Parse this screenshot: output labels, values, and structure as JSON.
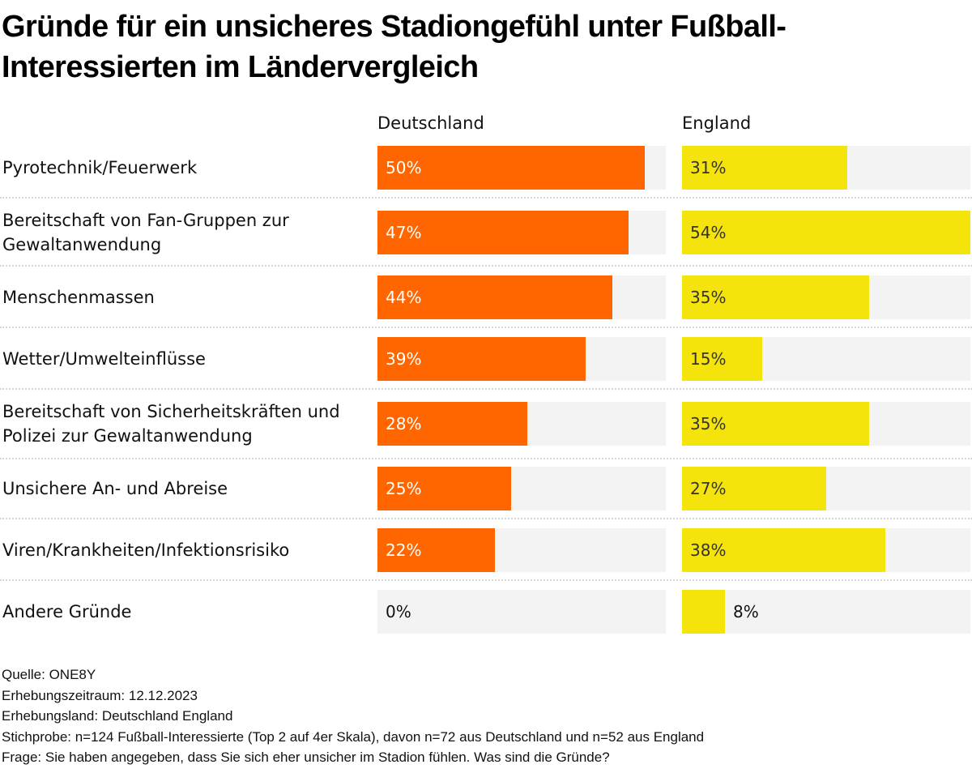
{
  "chart_data": {
    "type": "bar",
    "orientation": "horizontal",
    "title": "Gründe für ein unsicheres Stadiongefühl unter Fußball-Interessierten im Ländervergleich",
    "unit": "%",
    "scale_max": 54,
    "categories": [
      "Pyrotechnik/Feuerwerk",
      "Bereitschaft von Fan-Gruppen zur Gewaltanwendung",
      "Menschenmassen",
      "Wetter/Umwelteinflüsse",
      "Bereitschaft von Sicherheitskräften und Polizei zur Gewaltanwendung",
      "Unsichere An- und Abreise",
      "Viren/Krankheiten/Infektionsrisiko",
      "Andere Gründe"
    ],
    "series": [
      {
        "name": "Deutschland",
        "color": "#ff6600",
        "values": [
          50,
          47,
          44,
          39,
          28,
          25,
          22,
          0
        ]
      },
      {
        "name": "England",
        "color": "#f4e40c",
        "values": [
          31,
          54,
          35,
          15,
          35,
          27,
          38,
          8
        ]
      }
    ],
    "value_labels": {
      "Deutschland": [
        "50%",
        "47%",
        "44%",
        "39%",
        "28%",
        "25%",
        "22%",
        "0%"
      ],
      "England": [
        "31%",
        "54%",
        "35%",
        "15%",
        "35%",
        "27%",
        "38%",
        "8%"
      ]
    },
    "legend": "column headers at top",
    "grid": false
  },
  "header": {
    "title": "Gründe für ein unsicheres Stadiongefühl unter Fußball-Interessierten im Ländervergleich",
    "col_de": "Deutschland",
    "col_en": "England"
  },
  "footer": {
    "source": "Quelle: ONE8Y",
    "period": "Erhebungszeitraum: 12.12.2023",
    "country": "Erhebungsland: Deutschland England",
    "sample": "Stichprobe: n=124 Fußball-Interessierte (Top 2 auf 4er Skala), davon n=72 aus Deutschland und n=52 aus England",
    "question": "Frage: Sie haben angegeben, dass Sie sich eher unsicher im Stadion fühlen. Was sind die Gründe?"
  }
}
